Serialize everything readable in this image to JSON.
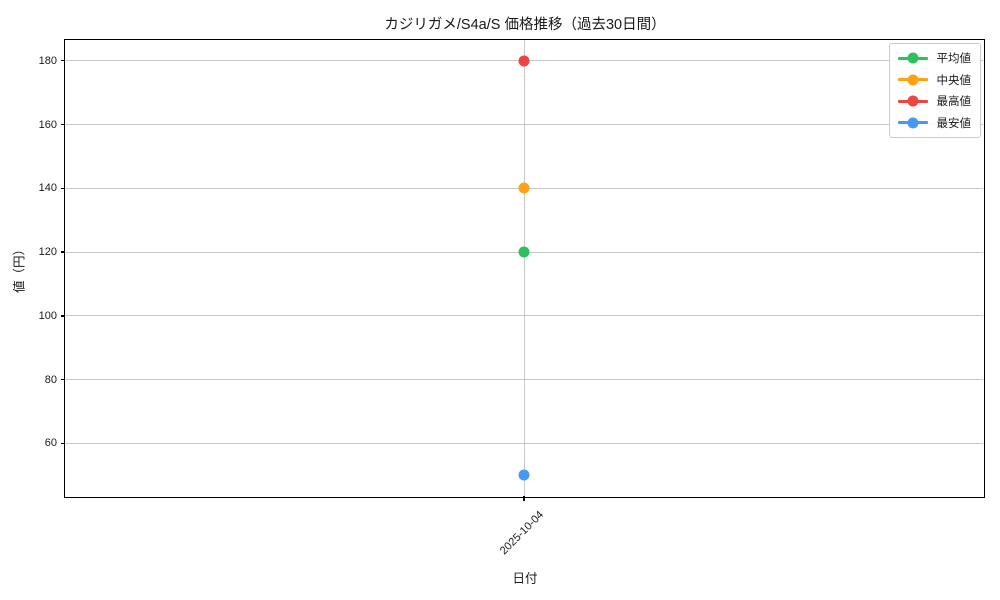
{
  "chart_data": {
    "type": "line",
    "title": "カジリガメ/S4a/S 価格推移（過去30日間）",
    "xlabel": "日付",
    "ylabel": "値（円）",
    "categories": [
      "2025-10-04"
    ],
    "series": [
      {
        "name": "平均値",
        "color": "#2dc05f",
        "values": [
          120
        ]
      },
      {
        "name": "中央値",
        "color": "#ffa316",
        "values": [
          140
        ]
      },
      {
        "name": "最高値",
        "color": "#ee4540",
        "values": [
          180
        ]
      },
      {
        "name": "最安値",
        "color": "#4599f2",
        "values": [
          50
        ]
      }
    ],
    "yticks": [
      60,
      80,
      100,
      120,
      140,
      160,
      180
    ],
    "ylim": [
      43.5,
      186.5
    ],
    "grid": true,
    "legend_position": "upper right"
  },
  "colors": {
    "background": "#ffffff",
    "grid": "#c9c9c9",
    "axis": "#000000",
    "text": "#1a1a1a"
  }
}
